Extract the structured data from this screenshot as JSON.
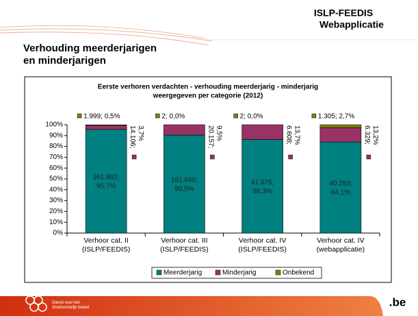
{
  "header": {
    "title": "ISLP-FEEDIS",
    "subtitle": "Webapplicatie"
  },
  "slide_title": "Verhouding meerderjarigen\nen minderjarigen",
  "footer": {
    "org": "Dienst voor het\nStrafrechtelijk beleid",
    "domain": ".be"
  },
  "chart_data": {
    "type": "stacked_bar_100",
    "title": "Eerste verhoren verdachten - verhouding meerderjarig - minderjarig",
    "subtitle": "weergegeven per categorie (2012)",
    "categories": [
      "Verhoor cat. II\n(ISLP/FEEDIS)",
      "Verhoor cat. III\n(ISLP/FEEDIS)",
      "Verhoor cat. IV\n(ISLP/FEEDIS)",
      "Verhoor cat. IV\n(webapplicatie)"
    ],
    "series": [
      {
        "name": "Meerderjarig",
        "color": "#008080",
        "values": [
          95.7,
          90.5,
          86.3,
          84.1
        ],
        "value_labels": [
          "361.892; 95,7%",
          "191.640; 90,5%",
          "41.675; 86,3%",
          "40.293; 84,1%"
        ]
      },
      {
        "name": "Minderjarig",
        "color": "#993366",
        "values": [
          3.7,
          9.5,
          13.7,
          13.2
        ],
        "value_labels": [
          "14.106; 3,7%",
          "20.157; 9,5%",
          "6.608; 13,7%",
          "6.329; 13,2%"
        ]
      },
      {
        "name": "Onbekend",
        "color": "#808000",
        "values": [
          0.5,
          0.0,
          0.0,
          2.7
        ],
        "value_labels": [
          "1.999; 0,5%",
          "2; 0,0%",
          "2; 0,0%",
          "1.305; 2,7%"
        ]
      }
    ],
    "ylim": [
      0,
      100
    ],
    "yticks": [
      {
        "value": 0,
        "label": "0%"
      },
      {
        "value": 10,
        "label": "10%"
      },
      {
        "value": 20,
        "label": "20%"
      },
      {
        "value": 30,
        "label": "30%"
      },
      {
        "value": 40,
        "label": "40%"
      },
      {
        "value": 50,
        "label": "50%"
      },
      {
        "value": 60,
        "label": "60%"
      },
      {
        "value": 70,
        "label": "70%"
      },
      {
        "value": 80,
        "label": "80%"
      },
      {
        "value": 90,
        "label": "90%"
      },
      {
        "value": 100,
        "label": "100%"
      }
    ],
    "legend": "bottom"
  }
}
